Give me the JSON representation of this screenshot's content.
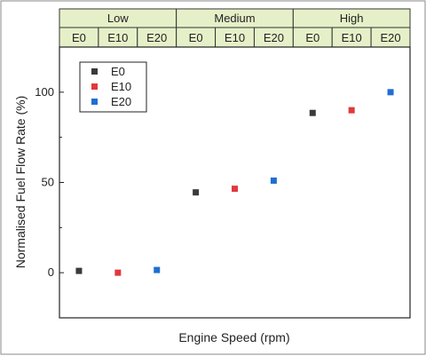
{
  "chart_data": {
    "type": "scatter",
    "xlabel": "Engine Speed (rpm)",
    "ylabel": "Normalised  Fuel Flow Rate (%)",
    "ylim": [
      -25,
      125
    ],
    "yticks": [
      0,
      50,
      100
    ],
    "header": {
      "groups": [
        "Low",
        "Medium",
        "High"
      ],
      "subcategories": [
        "E0",
        "E10",
        "E20"
      ]
    },
    "legend": {
      "placement": "top-left",
      "entries": [
        "E0",
        "E10",
        "E20"
      ]
    },
    "grid": false,
    "series": [
      {
        "name": "E0",
        "color": "#3a3a3a",
        "points": [
          {
            "group": "Low",
            "y": 1
          },
          {
            "group": "Medium",
            "y": 44.5
          },
          {
            "group": "High",
            "y": 88.5
          }
        ]
      },
      {
        "name": "E10",
        "color": "#e0393e",
        "points": [
          {
            "group": "Low",
            "y": 0
          },
          {
            "group": "Medium",
            "y": 46.5
          },
          {
            "group": "High",
            "y": 90
          }
        ]
      },
      {
        "name": "E20",
        "color": "#1f6fd1",
        "points": [
          {
            "group": "Low",
            "y": 1.5
          },
          {
            "group": "Medium",
            "y": 51
          },
          {
            "group": "High",
            "y": 100
          }
        ]
      }
    ]
  }
}
